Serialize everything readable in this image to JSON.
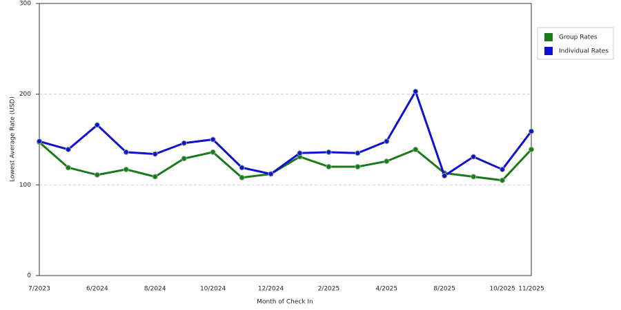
{
  "chart_data": {
    "type": "line",
    "x_label": "Month of Check In",
    "y_label": "Lowest Average Rate (USD)",
    "categories": [
      "7/2023",
      null,
      "6/2024",
      null,
      "8/2024",
      null,
      "10/2024",
      null,
      "12/2024",
      null,
      "2/2025",
      null,
      "4/2025",
      null,
      "8/2025",
      null,
      "10/2025",
      "11/2025"
    ],
    "series": [
      {
        "name": "Group Rates",
        "color": "#1a7a1a",
        "values": [
          147,
          119,
          111,
          117,
          109,
          129,
          136,
          108,
          112,
          131,
          120,
          120,
          126,
          139,
          113,
          109,
          105,
          139
        ]
      },
      {
        "name": "Individual Rates",
        "color": "#1010d0",
        "values": [
          148,
          139,
          166,
          136,
          134,
          146,
          150,
          119,
          112,
          135,
          136,
          135,
          148,
          203,
          110,
          131,
          117,
          159
        ]
      }
    ],
    "ylim": [
      0,
      300
    ],
    "yticks": [
      0,
      100,
      200,
      300
    ],
    "grid": true,
    "legend": "right"
  }
}
